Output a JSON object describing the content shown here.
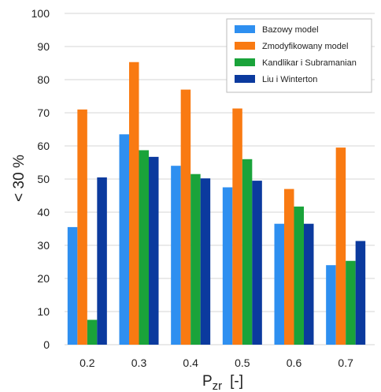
{
  "chart_data": {
    "type": "bar",
    "categories": [
      "0.2",
      "0.3",
      "0.4",
      "0.5",
      "0.6",
      "0.7"
    ],
    "series": [
      {
        "name": "Bazowy model",
        "color": "#2e8ff0",
        "values": [
          35.5,
          63.5,
          54.0,
          47.5,
          36.5,
          24.0
        ]
      },
      {
        "name": "Zmodyfikowany model",
        "color": "#f97a12",
        "values": [
          71.0,
          85.3,
          77.0,
          71.3,
          47.0,
          59.5
        ]
      },
      {
        "name": "Kandlikar i Subramanian",
        "color": "#1aa33a",
        "values": [
          7.5,
          58.7,
          51.5,
          56.0,
          41.7,
          25.3
        ]
      },
      {
        "name": "Liu i Winterton",
        "color": "#0b3a9e",
        "values": [
          50.5,
          56.7,
          50.2,
          49.5,
          36.5,
          31.3
        ]
      }
    ],
    "ylim": [
      0,
      100
    ],
    "yticks": [
      "0",
      "10",
      "20",
      "30",
      "40",
      "50",
      "60",
      "70",
      "80",
      "90",
      "100"
    ],
    "ylabel": "< 30 %",
    "xlabel": {
      "main": "P",
      "sub": "zr",
      "unit": "[-]"
    },
    "grid": true,
    "legend_position": "top-right"
  }
}
